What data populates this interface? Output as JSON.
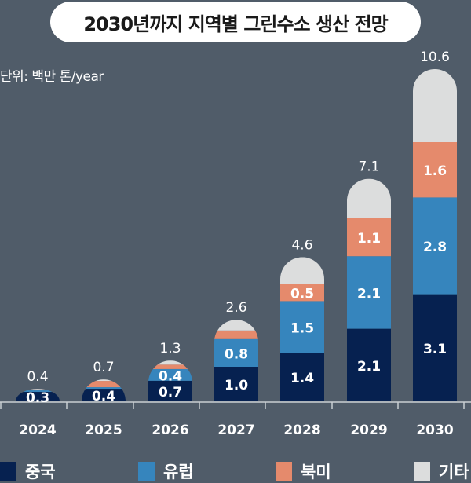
{
  "title": "2030년까지 지역별 그린수소 생산 전망",
  "unit_label": "단위: 백만 톤/year",
  "colors": {
    "china": "#062150",
    "europe": "#3685bd",
    "north_america": "#e58a6c",
    "other": "#dcdddd",
    "background": "#505c69"
  },
  "legend": [
    {
      "key": "china",
      "label": "중국"
    },
    {
      "key": "europe",
      "label": "유럽"
    },
    {
      "key": "north_america",
      "label": "북미"
    },
    {
      "key": "other",
      "label": "기타"
    }
  ],
  "chart_data": {
    "type": "bar",
    "stacked": true,
    "title": "2030년까지 지역별 그린수소 생산 전망",
    "ylabel": "단위: 백만 톤/year",
    "categories": [
      "2024",
      "2025",
      "2026",
      "2027",
      "2028",
      "2029",
      "2030"
    ],
    "totals": [
      0.4,
      0.7,
      1.3,
      2.6,
      4.6,
      7.1,
      10.6
    ],
    "total_labels": [
      "0.4",
      "0.7",
      "1.3",
      "2.6",
      "4.6",
      "7.1",
      "10.6"
    ],
    "series": [
      {
        "name": "중국",
        "key": "china",
        "values": [
          0.3,
          0.4,
          0.7,
          1.0,
          1.4,
          2.1,
          3.1
        ],
        "labels": [
          "0.3",
          "0.4",
          "0.7",
          "1.0",
          "1.4",
          "2.1",
          "3.1"
        ]
      },
      {
        "name": "유럽",
        "key": "europe",
        "values": [
          0.05,
          0.05,
          0.4,
          0.8,
          1.5,
          2.1,
          2.8
        ],
        "labels": [
          "",
          "",
          "0.4",
          "0.8",
          "1.5",
          "2.1",
          "2.8"
        ]
      },
      {
        "name": "북미",
        "key": "north_america",
        "values": [
          0.03,
          0.2,
          0.15,
          0.25,
          0.5,
          1.1,
          1.6
        ],
        "labels": [
          "",
          "",
          "",
          "",
          "0.5",
          "1.1",
          "1.6"
        ]
      },
      {
        "name": "기타",
        "key": "other",
        "values": [
          0.02,
          0.05,
          0.05,
          0.55,
          1.2,
          1.8,
          3.1
        ],
        "labels": [
          "",
          "",
          "",
          "",
          "",
          "",
          ""
        ]
      }
    ],
    "legend_position": "bottom",
    "grid": false
  }
}
